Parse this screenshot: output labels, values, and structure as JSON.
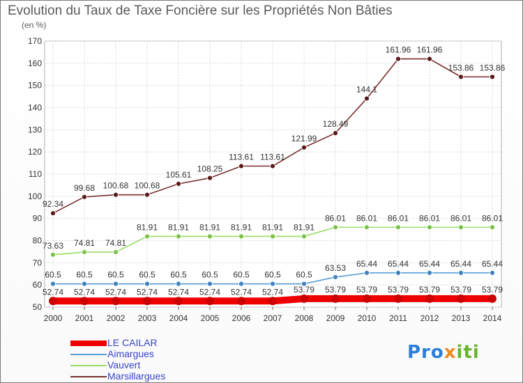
{
  "chart_data": {
    "type": "line",
    "title": "Evolution du Taux de Taxe Foncière sur les Propriétés Non Bâties",
    "unit_label": "(en %)",
    "xlabel": "",
    "ylabel": "",
    "ylim": [
      50,
      170
    ],
    "yticks": [
      50,
      60,
      70,
      80,
      90,
      100,
      110,
      120,
      130,
      140,
      150,
      160,
      170
    ],
    "grid": true,
    "categories": [
      "2000",
      "2001",
      "2002",
      "2003",
      "2004",
      "2005",
      "2006",
      "2007",
      "2008",
      "2009",
      "2010",
      "2011",
      "2012",
      "2013",
      "2014"
    ],
    "series": [
      {
        "name": "LE CAILAR",
        "color": "#ee0000",
        "marker": "#cc0000",
        "values": [
          52.74,
          52.74,
          52.74,
          52.74,
          52.74,
          52.74,
          52.74,
          52.74,
          53.79,
          53.79,
          53.79,
          53.79,
          53.79,
          53.79,
          53.79
        ],
        "labels": [
          "52.74",
          "52.74",
          "52.74",
          "52.74",
          "52.74",
          "52.74",
          "52.74",
          "52.74",
          "53.79",
          "53.79",
          "53.79",
          "53.79",
          "53.79",
          "53.79",
          "53.79"
        ]
      },
      {
        "name": "Aimargues",
        "color": "#5b9fd4",
        "marker": "#3f82c0",
        "values": [
          60.5,
          60.5,
          60.5,
          60.5,
          60.5,
          60.5,
          60.5,
          60.5,
          60.5,
          63.53,
          65.44,
          65.44,
          65.44,
          65.44,
          65.44
        ],
        "labels": [
          "60.5",
          "60.5",
          "60.5",
          "60.5",
          "60.5",
          "60.5",
          "60.5",
          "60.5",
          "60.5",
          "63.53",
          "65.44",
          "65.44",
          "65.44",
          "65.44",
          "65.44"
        ]
      },
      {
        "name": "Vauvert",
        "color": "#99dd66",
        "marker": "#7cc24a",
        "values": [
          73.63,
          74.81,
          74.81,
          81.91,
          81.91,
          81.91,
          81.91,
          81.91,
          81.91,
          86.01,
          86.01,
          86.01,
          86.01,
          86.01,
          86.01
        ],
        "labels": [
          "73.63",
          "74.81",
          "74.81",
          "81.91",
          "81.91",
          "81.91",
          "81.91",
          "81.91",
          "81.91",
          "86.01",
          "86.01",
          "86.01",
          "86.01",
          "86.01",
          "86.01"
        ]
      },
      {
        "name": "Marsillargues",
        "color": "#7a2e2e",
        "marker": "#5a1a1a",
        "values": [
          92.34,
          99.68,
          100.68,
          100.68,
          105.61,
          108.25,
          113.61,
          113.61,
          121.99,
          128.49,
          144.1,
          161.96,
          161.96,
          153.86,
          153.86
        ],
        "labels": [
          "92.34",
          "99.68",
          "100.68",
          "100.68",
          "105.61",
          "108.25",
          "113.61",
          "113.61",
          "121.99",
          "128.49",
          "144.1",
          "161.96",
          "161.96",
          "153.86",
          "153.86"
        ]
      }
    ]
  },
  "legend": {
    "items": [
      {
        "label": "LE CAILAR",
        "color": "#ee0000"
      },
      {
        "label": "Aimargues",
        "color": "#5b9fd4"
      },
      {
        "label": "Vauvert",
        "color": "#99dd66"
      },
      {
        "label": "Marsillargues",
        "color": "#7a2e2e"
      }
    ]
  },
  "logo": {
    "part1": "Pro",
    "part2": "x",
    "part3": "iti"
  }
}
